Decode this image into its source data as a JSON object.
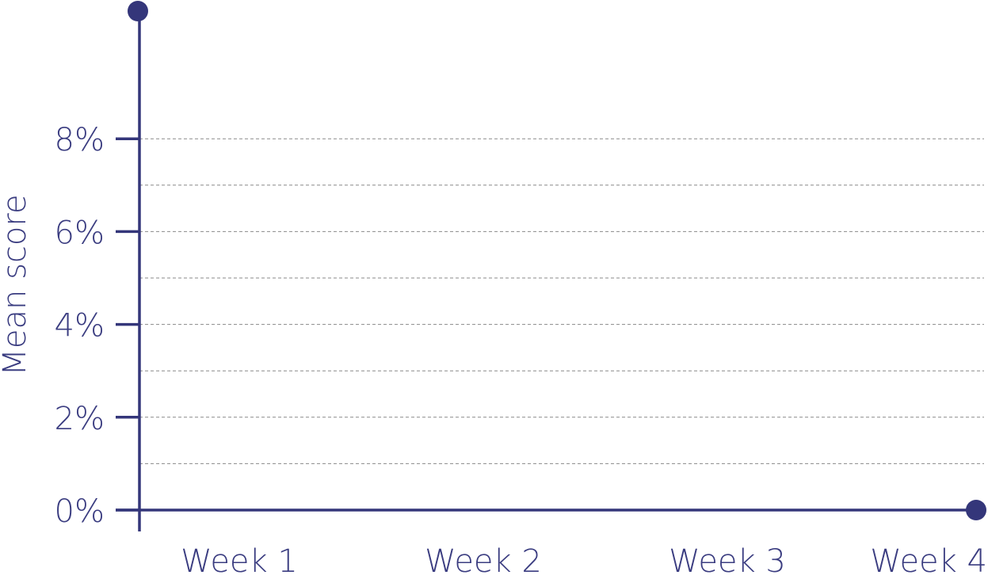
{
  "chart_data": {
    "type": "line",
    "title": "",
    "xlabel": "",
    "ylabel": "Mean score",
    "categories": [
      "Week 1",
      "Week 2",
      "Week 3",
      "Week 4"
    ],
    "ylim": [
      0,
      8
    ],
    "y_ticks": [
      {
        "value": 0,
        "label": "0%"
      },
      {
        "value": 2,
        "label": "2%"
      },
      {
        "value": 4,
        "label": "4%"
      },
      {
        "value": 6,
        "label": "6%"
      },
      {
        "value": 8,
        "label": "8%"
      }
    ],
    "y_gridlines": [
      1,
      2,
      3,
      4,
      5,
      6,
      7,
      8
    ],
    "grid": true,
    "series": []
  },
  "colors": {
    "axis": "#34367a",
    "text": "#3a3c80",
    "grid": "#8a8a8a"
  }
}
